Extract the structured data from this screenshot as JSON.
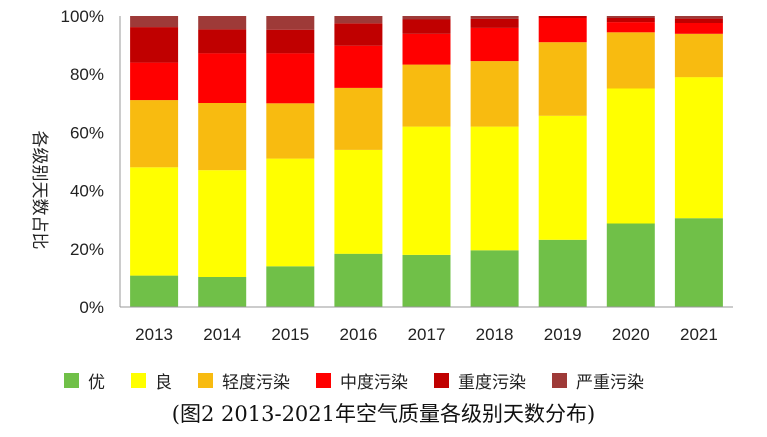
{
  "chart_data": {
    "type": "bar",
    "stacked": true,
    "categories": [
      "2013",
      "2014",
      "2015",
      "2016",
      "2017",
      "2018",
      "2019",
      "2020",
      "2021"
    ],
    "ylabel": "各级别天数占比",
    "ylim": [
      0,
      100
    ],
    "yticks": [
      "0%",
      "20%",
      "40%",
      "60%",
      "80%",
      "100%"
    ],
    "ytick_values": [
      0,
      20,
      40,
      60,
      80,
      100
    ],
    "legend_position": "bottom",
    "grid": false,
    "series": [
      {
        "name": "优",
        "color": "#70c048",
        "values": [
          10.8,
          10.3,
          14.0,
          18.3,
          17.9,
          19.5,
          23.1,
          28.7,
          30.5
        ]
      },
      {
        "name": "良",
        "color": "#ffff00",
        "values": [
          37.2,
          36.7,
          37.0,
          35.7,
          44.1,
          42.5,
          42.6,
          46.4,
          48.5
        ]
      },
      {
        "name": "轻度污染",
        "color": "#f8bb10",
        "values": [
          23.1,
          23.1,
          19.0,
          21.3,
          21.3,
          22.5,
          25.3,
          19.3,
          14.9
        ]
      },
      {
        "name": "中度污染",
        "color": "#ff0000",
        "values": [
          12.9,
          17.1,
          17.2,
          14.5,
          10.6,
          11.4,
          8.3,
          3.5,
          3.7
        ]
      },
      {
        "name": "重度污染",
        "color": "#c00000",
        "values": [
          12.2,
          8.2,
          8.1,
          7.7,
          4.9,
          3.1,
          0.7,
          1.4,
          1.5
        ]
      },
      {
        "name": "严重污染",
        "color": "#9e3a38",
        "values": [
          3.8,
          4.6,
          4.7,
          2.5,
          1.2,
          1.0,
          0.0,
          0.7,
          0.9
        ]
      }
    ]
  },
  "caption": "(图2 2013-2021年空气质量各级别天数分布)"
}
